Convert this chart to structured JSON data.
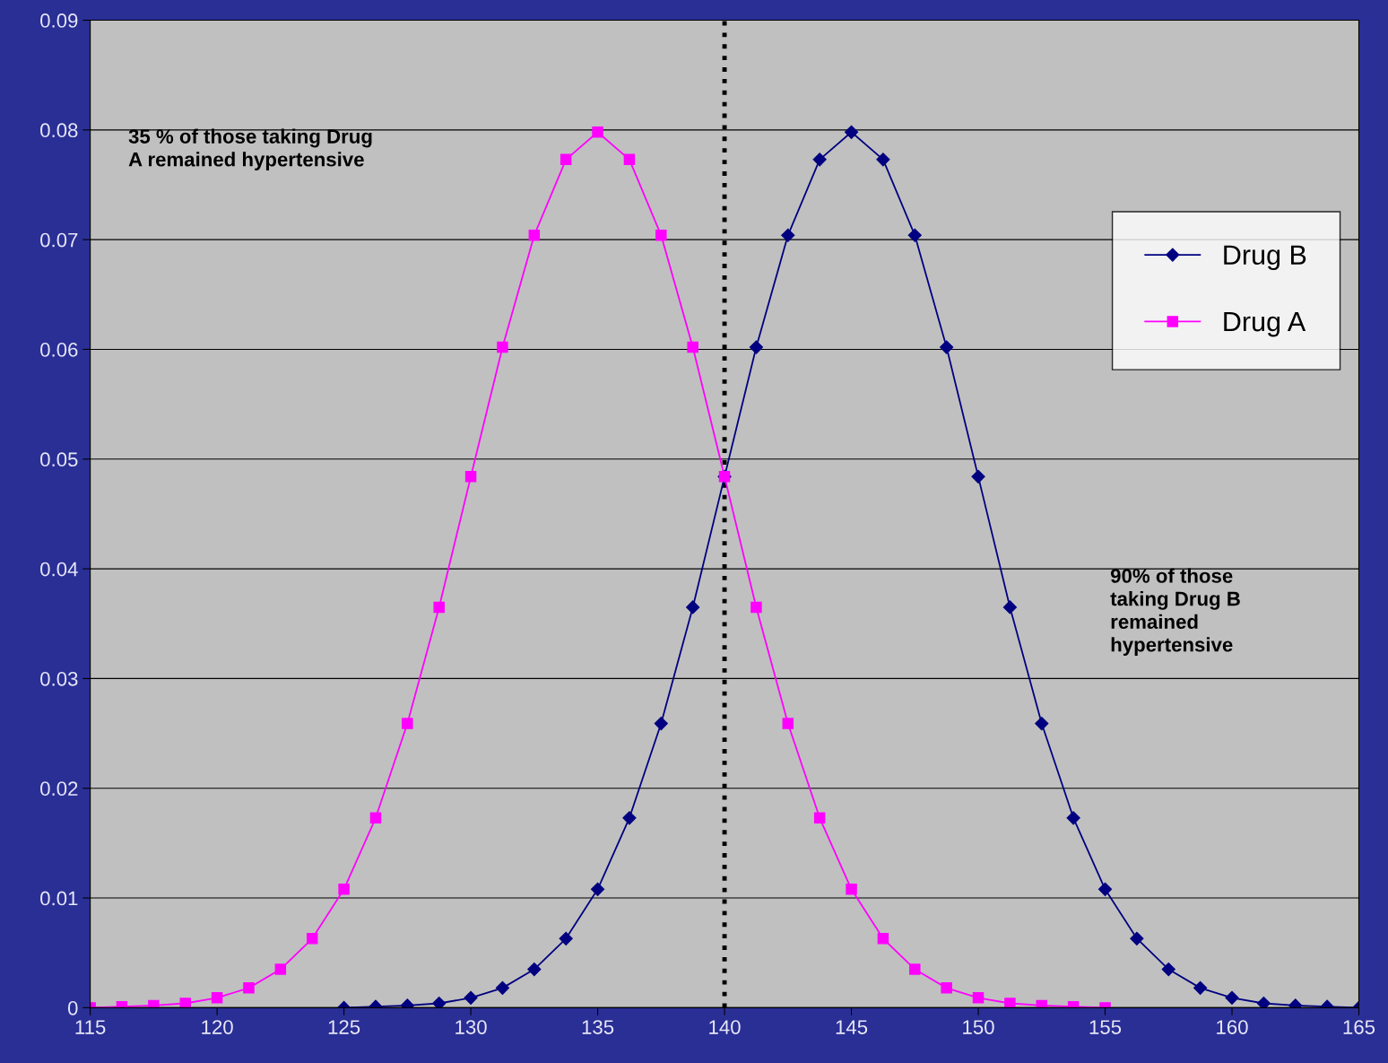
{
  "chart_data": {
    "type": "line",
    "xlim": [
      115,
      165
    ],
    "xticks": [
      115,
      120,
      125,
      130,
      135,
      140,
      145,
      150,
      155,
      160,
      165
    ],
    "ylim": [
      0,
      0.09
    ],
    "yticks": [
      0,
      0.01,
      0.02,
      0.03,
      0.04,
      0.05,
      0.06,
      0.07,
      0.08,
      0.09
    ],
    "grid": "y",
    "legend": "right",
    "series": [
      {
        "name": "Drug B",
        "color": "#000080",
        "marker": "diamond",
        "x": [
          125,
          126.25,
          127.5,
          128.75,
          130,
          131.25,
          132.5,
          133.75,
          135,
          136.25,
          137.5,
          138.75,
          140,
          141.25,
          142.5,
          143.75,
          145,
          146.25,
          147.5,
          148.75,
          150,
          151.25,
          152.5,
          153.75,
          155,
          156.25,
          157.5,
          158.75,
          160,
          161.25,
          162.5,
          163.75,
          165
        ],
        "values": [
          0.0,
          0.0001,
          0.0002,
          0.0004,
          0.0009,
          0.0018,
          0.0035,
          0.0063,
          0.0108,
          0.0173,
          0.0259,
          0.0365,
          0.0484,
          0.0602,
          0.0704,
          0.0773,
          0.0798,
          0.0773,
          0.0704,
          0.0602,
          0.0484,
          0.0365,
          0.0259,
          0.0173,
          0.0108,
          0.0063,
          0.0035,
          0.0018,
          0.0009,
          0.0004,
          0.0002,
          0.0001,
          0.0
        ]
      },
      {
        "name": "Drug A",
        "color": "#ff00ff",
        "marker": "square",
        "x": [
          115,
          116.25,
          117.5,
          118.75,
          120,
          121.25,
          122.5,
          123.75,
          125,
          126.25,
          127.5,
          128.75,
          130,
          131.25,
          132.5,
          133.75,
          135,
          136.25,
          137.5,
          138.75,
          140,
          141.25,
          142.5,
          143.75,
          145,
          146.25,
          147.5,
          148.75,
          150,
          151.25,
          152.5,
          153.75,
          155
        ],
        "values": [
          0.0,
          0.0001,
          0.0002,
          0.0004,
          0.0009,
          0.0018,
          0.0035,
          0.0063,
          0.0108,
          0.0173,
          0.0259,
          0.0365,
          0.0484,
          0.0602,
          0.0704,
          0.0773,
          0.0798,
          0.0773,
          0.0704,
          0.0602,
          0.0484,
          0.0365,
          0.0259,
          0.0173,
          0.0108,
          0.0063,
          0.0035,
          0.0018,
          0.0009,
          0.0004,
          0.0002,
          0.0001,
          0.0
        ]
      }
    ],
    "ref_lines": [
      {
        "axis": "x",
        "value": 140,
        "color": "#000000",
        "line_style": "dotted"
      }
    ],
    "annotations": [
      "35 % of those taking Drug\nA remained hypertensive",
      "90% of those\ntaking Drug B\nremained\nhypertensive"
    ]
  }
}
